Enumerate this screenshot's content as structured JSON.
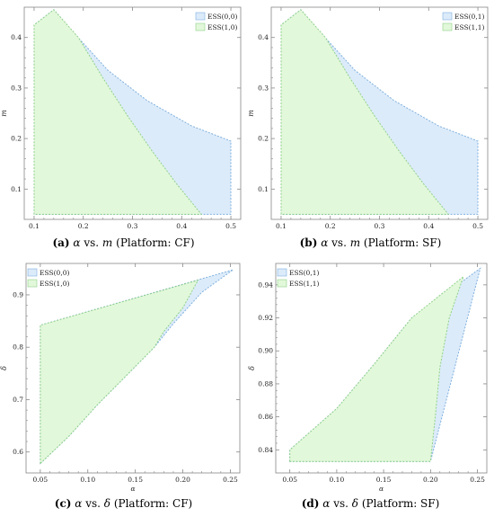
{
  "colors": {
    "ess_blue_fill": "#dcebfa",
    "ess_blue_edge": "#7fb0de",
    "ess_green_fill": "#e2f8da",
    "ess_green_edge": "#8fd18a",
    "frame": "#888888"
  },
  "chart_data": [
    {
      "id": "a",
      "type": "area",
      "caption": {
        "tag": "(a)",
        "x_sym": "α",
        "y_sym": "m",
        "platform": "(Platform: CF)"
      },
      "xlabel": "α",
      "ylabel": "m",
      "xlim": [
        0.08,
        0.52
      ],
      "ylim": [
        0.04,
        0.46
      ],
      "xticks": [
        {
          "v": 0.1,
          "t": "0.1"
        },
        {
          "v": 0.2,
          "t": "0.2"
        },
        {
          "v": 0.3,
          "t": "0.3"
        },
        {
          "v": 0.4,
          "t": "0.4"
        },
        {
          "v": 0.5,
          "t": "0.5"
        }
      ],
      "yticks": [
        {
          "v": 0.1,
          "t": "0.1"
        },
        {
          "v": 0.2,
          "t": "0.2"
        },
        {
          "v": 0.3,
          "t": "0.3"
        },
        {
          "v": 0.4,
          "t": "0.4"
        }
      ],
      "legend_position": "top-right",
      "regions": [
        {
          "name": "ESS(0,0)",
          "color": "blue",
          "polygon": [
            [
              0.1,
              0.05
            ],
            [
              0.1,
              0.425
            ],
            [
              0.14,
              0.455
            ],
            [
              0.18,
              0.41
            ],
            [
              0.25,
              0.335
            ],
            [
              0.33,
              0.275
            ],
            [
              0.42,
              0.225
            ],
            [
              0.5,
              0.195
            ],
            [
              0.5,
              0.05
            ]
          ]
        },
        {
          "name": "ESS(1,0)",
          "color": "green",
          "polygon": [
            [
              0.1,
              0.05
            ],
            [
              0.1,
              0.425
            ],
            [
              0.14,
              0.455
            ],
            [
              0.19,
              0.4
            ],
            [
              0.24,
              0.32
            ],
            [
              0.29,
              0.245
            ],
            [
              0.34,
              0.175
            ],
            [
              0.39,
              0.11
            ],
            [
              0.44,
              0.05
            ]
          ]
        }
      ],
      "grid": false
    },
    {
      "id": "b",
      "type": "area",
      "caption": {
        "tag": "(b)",
        "x_sym": "α",
        "y_sym": "m",
        "platform": "(Platform: SF)"
      },
      "xlabel": "α",
      "ylabel": "m",
      "xlim": [
        0.08,
        0.52
      ],
      "ylim": [
        0.04,
        0.46
      ],
      "xticks": [
        {
          "v": 0.1,
          "t": "0.1"
        },
        {
          "v": 0.2,
          "t": "0.2"
        },
        {
          "v": 0.3,
          "t": "0.3"
        },
        {
          "v": 0.4,
          "t": "0.4"
        },
        {
          "v": 0.5,
          "t": "0.5"
        }
      ],
      "yticks": [
        {
          "v": 0.1,
          "t": "0.1"
        },
        {
          "v": 0.2,
          "t": "0.2"
        },
        {
          "v": 0.3,
          "t": "0.3"
        },
        {
          "v": 0.4,
          "t": "0.4"
        }
      ],
      "legend_position": "top-right",
      "regions": [
        {
          "name": "ESS(0,1)",
          "color": "blue",
          "polygon": [
            [
              0.1,
              0.05
            ],
            [
              0.1,
              0.425
            ],
            [
              0.14,
              0.455
            ],
            [
              0.18,
              0.41
            ],
            [
              0.25,
              0.335
            ],
            [
              0.33,
              0.275
            ],
            [
              0.42,
              0.225
            ],
            [
              0.5,
              0.195
            ],
            [
              0.5,
              0.05
            ]
          ]
        },
        {
          "name": "ESS(1,1)",
          "color": "green",
          "polygon": [
            [
              0.1,
              0.05
            ],
            [
              0.1,
              0.425
            ],
            [
              0.14,
              0.455
            ],
            [
              0.19,
              0.4
            ],
            [
              0.24,
              0.32
            ],
            [
              0.29,
              0.245
            ],
            [
              0.34,
              0.175
            ],
            [
              0.39,
              0.11
            ],
            [
              0.44,
              0.05
            ]
          ]
        }
      ],
      "grid": false
    },
    {
      "id": "c",
      "type": "area",
      "caption": {
        "tag": "(c)",
        "x_sym": "α",
        "y_sym": "δ",
        "platform": "(Platform: CF)"
      },
      "xlabel": "α",
      "ylabel": "δ",
      "xlim": [
        0.035,
        0.26
      ],
      "ylim": [
        0.56,
        0.96
      ],
      "xticks": [
        {
          "v": 0.05,
          "t": "0.05"
        },
        {
          "v": 0.1,
          "t": "0.10"
        },
        {
          "v": 0.15,
          "t": "0.15"
        },
        {
          "v": 0.2,
          "t": "0.20"
        },
        {
          "v": 0.25,
          "t": "0.25"
        }
      ],
      "yticks": [
        {
          "v": 0.6,
          "t": "0.6"
        },
        {
          "v": 0.7,
          "t": "0.7"
        },
        {
          "v": 0.8,
          "t": "0.8"
        },
        {
          "v": 0.9,
          "t": "0.9"
        }
      ],
      "legend_position": "top-left",
      "regions": [
        {
          "name": "ESS(0,0)",
          "color": "blue",
          "polygon": [
            [
              0.05,
              0.578
            ],
            [
              0.05,
              0.842
            ],
            [
              0.253,
              0.948
            ],
            [
              0.22,
              0.905
            ],
            [
              0.19,
              0.845
            ],
            [
              0.17,
              0.8
            ],
            [
              0.14,
              0.745
            ],
            [
              0.11,
              0.69
            ],
            [
              0.08,
              0.63
            ]
          ]
        },
        {
          "name": "ESS(1,0)",
          "color": "green",
          "polygon": [
            [
              0.05,
              0.578
            ],
            [
              0.05,
              0.842
            ],
            [
              0.216,
              0.928
            ],
            [
              0.2,
              0.875
            ],
            [
              0.18,
              0.83
            ],
            [
              0.17,
              0.8
            ],
            [
              0.14,
              0.745
            ],
            [
              0.11,
              0.69
            ],
            [
              0.08,
              0.63
            ]
          ]
        }
      ],
      "grid": false
    },
    {
      "id": "d",
      "type": "area",
      "caption": {
        "tag": "(d)",
        "x_sym": "α",
        "y_sym": "δ",
        "platform": "(Platform: SF)"
      },
      "xlabel": "α",
      "ylabel": "δ",
      "xlim": [
        0.035,
        0.26
      ],
      "ylim": [
        0.826,
        0.953
      ],
      "xticks": [
        {
          "v": 0.05,
          "t": "0.05"
        },
        {
          "v": 0.1,
          "t": "0.10"
        },
        {
          "v": 0.15,
          "t": "0.15"
        },
        {
          "v": 0.2,
          "t": "0.20"
        },
        {
          "v": 0.25,
          "t": "0.25"
        }
      ],
      "yticks": [
        {
          "v": 0.84,
          "t": "0.84"
        },
        {
          "v": 0.86,
          "t": "0.86"
        },
        {
          "v": 0.88,
          "t": "0.88"
        },
        {
          "v": 0.9,
          "t": "0.90"
        },
        {
          "v": 0.92,
          "t": "0.92"
        },
        {
          "v": 0.94,
          "t": "0.94"
        }
      ],
      "legend_position": "top-left",
      "regions": [
        {
          "name": "ESS(0,1)",
          "color": "blue",
          "polygon": [
            [
              0.05,
              0.833
            ],
            [
              0.05,
              0.84
            ],
            [
              0.1,
              0.865
            ],
            [
              0.14,
              0.892
            ],
            [
              0.18,
              0.92
            ],
            [
              0.253,
              0.95
            ],
            [
              0.2,
              0.833
            ]
          ]
        },
        {
          "name": "ESS(1,1)",
          "color": "green",
          "polygon": [
            [
              0.05,
              0.833
            ],
            [
              0.05,
              0.84
            ],
            [
              0.1,
              0.865
            ],
            [
              0.14,
              0.892
            ],
            [
              0.18,
              0.92
            ],
            [
              0.235,
              0.945
            ],
            [
              0.22,
              0.92
            ],
            [
              0.21,
              0.89
            ],
            [
              0.205,
              0.86
            ],
            [
              0.2,
              0.833
            ]
          ]
        }
      ],
      "grid": false
    }
  ]
}
